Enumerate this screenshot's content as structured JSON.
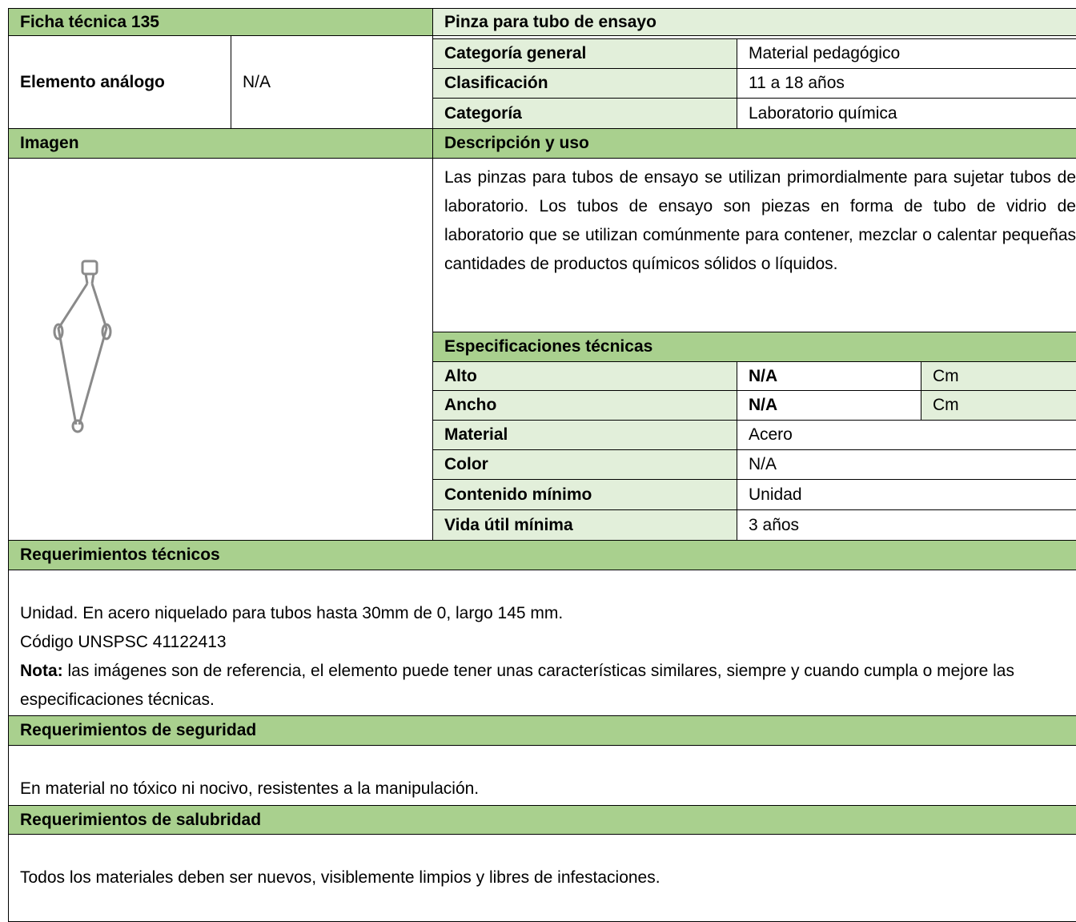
{
  "header": {
    "sheet": "Ficha técnica 135",
    "item": "Pinza para tubo de ensayo"
  },
  "analog": {
    "label": "Elemento análogo",
    "value": "N/A"
  },
  "general": [
    [
      "Categoría general",
      "Material pedagógico"
    ],
    [
      "Clasificación",
      "11 a 18 años"
    ],
    [
      "Categoría",
      "Laboratorio química"
    ]
  ],
  "image_label": "Imagen",
  "description": {
    "title": "Descripción y uso",
    "text": "Las pinzas para tubos de ensayo se utilizan primordialmente para sujetar tubos de laboratorio. Los tubos de ensayo son piezas en forma de tubo de vidrio de laboratorio que se utilizan comúnmente para contener, mezclar o calentar pequeñas cantidades de productos químicos sólidos o líquidos."
  },
  "specs": {
    "title": "Especificaciones técnicas",
    "rows": [
      [
        "Alto",
        "N/A",
        "Cm"
      ],
      [
        "Ancho",
        "N/A",
        "Cm"
      ],
      [
        "Material",
        "Acero"
      ],
      [
        "Color",
        "N/A"
      ],
      [
        "Contenido mínimo",
        "Unidad"
      ],
      [
        "Vida útil mínima",
        "3 años"
      ]
    ]
  },
  "technical": {
    "title": "Requerimientos técnicos",
    "lines": [
      "Unidad. En acero niquelado para tubos hasta 30mm de 0, largo 145 mm.",
      "Código UNSPSC 41122413"
    ],
    "note_label": "Nota:",
    "note": "las imágenes son de referencia, el elemento puede tener unas características similares, siempre y cuando cumpla o mejore las especificaciones técnicas."
  },
  "safety": {
    "title": "Requerimientos de seguridad",
    "text": "En material no tóxico ni nocivo, resistentes a la manipulación."
  },
  "health": {
    "title": "Requerimientos de salubridad",
    "text": "Todos los materiales deben ser nuevos, visiblemente limpios y libres de infestaciones."
  }
}
